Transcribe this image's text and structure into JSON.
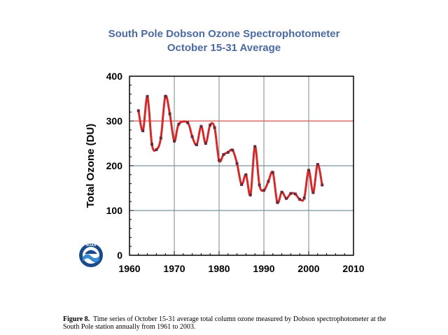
{
  "chart_data": {
    "type": "line",
    "title": "South Pole Dobson Ozone Spectrophotometer",
    "subtitle": "October 15-31 Average",
    "xlabel": "",
    "ylabel": "Total Ozone (DU)",
    "xlim": [
      1960,
      2010
    ],
    "ylim": [
      0,
      400
    ],
    "xticks": [
      "1960",
      "1970",
      "1980",
      "1990",
      "2000",
      "2010"
    ],
    "yticks": [
      "0",
      "100",
      "200",
      "300",
      "400"
    ],
    "grid": true,
    "colors": {
      "line": "#d42a2a",
      "marker": "#6b2a3a",
      "grid": "#5a7a8a",
      "ref_line": "#cc2222",
      "title": "#4a6aa0"
    },
    "x": [
      1962,
      1963,
      1964,
      1965,
      1966,
      1967,
      1968,
      1969,
      1970,
      1971,
      1973,
      1974,
      1975,
      1976,
      1977,
      1978,
      1979,
      1980,
      1981,
      1982,
      1983,
      1984,
      1985,
      1986,
      1987,
      1988,
      1989,
      1990,
      1991,
      1992,
      1993,
      1994,
      1995,
      1996,
      1997,
      1998,
      1999,
      2000,
      2001,
      2002,
      2003
    ],
    "y": [
      323,
      278,
      355,
      248,
      236,
      262,
      355,
      316,
      255,
      293,
      296,
      265,
      247,
      288,
      250,
      291,
      285,
      212,
      225,
      230,
      235,
      205,
      158,
      180,
      135,
      243,
      157,
      145,
      165,
      185,
      118,
      141,
      127,
      138,
      137,
      125,
      128,
      190,
      140,
      203,
      157
    ]
  },
  "caption": {
    "label": "Figure 8.",
    "text": "Time series of October 15-31 average total column ozone measured by Dobson spectrophotometer at the South Pole station annually from 1961 to 2003."
  },
  "logo": {
    "text": "NOAA"
  }
}
